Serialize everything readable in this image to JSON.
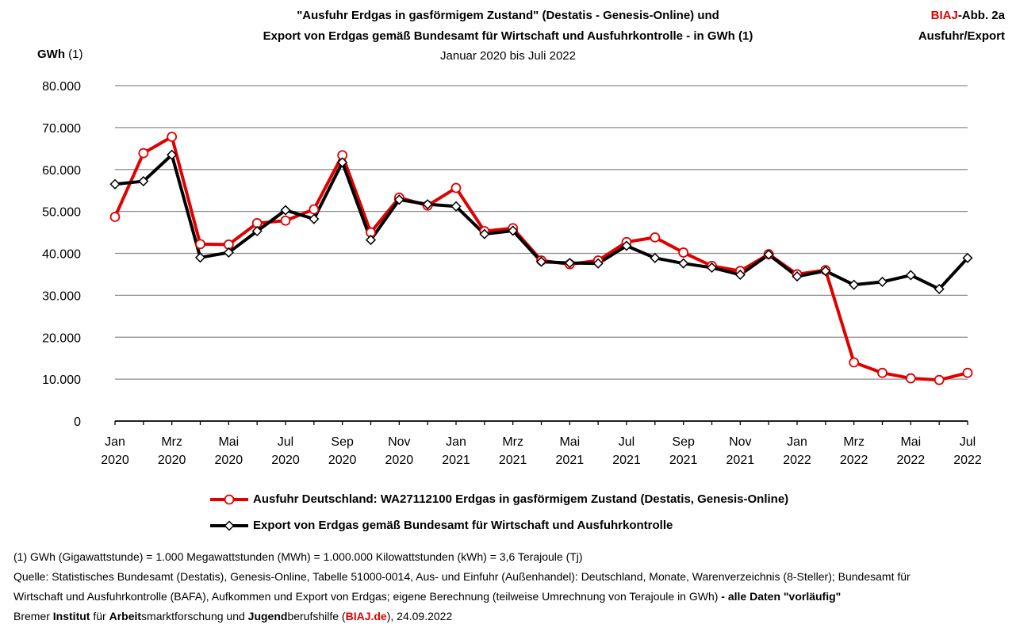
{
  "header": {
    "title_line1": "\"Ausfuhr Erdgas in gasförmigem Zustand\" (Destatis - Genesis-Online) und",
    "title_line2": "Export von Erdgas gemäß Bundesamt für Wirtschaft und Ausfuhrkontrolle  - in GWh (1)",
    "subtitle": "Januar 2020 bis Juli 2022",
    "brand_red": "BIAJ",
    "brand_rest": "-Abb. 2a",
    "brand_line2": "Ausfuhr/Export"
  },
  "axis": {
    "ylabel_bold": "GWh",
    "ylabel_rest": " (1)"
  },
  "chart_data": {
    "type": "line",
    "title": "",
    "xlabel": "",
    "ylabel": "GWh (1)",
    "ylim": [
      0,
      80000
    ],
    "yticks": [
      0,
      10000,
      20000,
      30000,
      40000,
      50000,
      60000,
      70000,
      80000
    ],
    "ytick_labels": [
      "0",
      "10.000",
      "20.000",
      "30.000",
      "40.000",
      "50.000",
      "60.000",
      "70.000",
      "80.000"
    ],
    "grid": true,
    "legend_position": "bottom",
    "x": [
      "Jan 2020",
      "Feb 2020",
      "Mrz 2020",
      "Apr 2020",
      "Mai 2020",
      "Jun 2020",
      "Jul 2020",
      "Aug 2020",
      "Sep 2020",
      "Okt 2020",
      "Nov 2020",
      "Dez 2020",
      "Jan 2021",
      "Feb 2021",
      "Mrz 2021",
      "Apr 2021",
      "Mai 2021",
      "Jun 2021",
      "Jul 2021",
      "Aug 2021",
      "Sep 2021",
      "Okt 2021",
      "Nov 2021",
      "Dez 2021",
      "Jan 2022",
      "Feb 2022",
      "Mrz 2022",
      "Apr 2022",
      "Mai 2022",
      "Jun 2022",
      "Jul 2022"
    ],
    "xtick_labels": [
      {
        "index": 0,
        "month": "Jan",
        "year": "2020"
      },
      {
        "index": 2,
        "month": "Mrz",
        "year": "2020"
      },
      {
        "index": 4,
        "month": "Mai",
        "year": "2020"
      },
      {
        "index": 6,
        "month": "Jul",
        "year": "2020"
      },
      {
        "index": 8,
        "month": "Sep",
        "year": "2020"
      },
      {
        "index": 10,
        "month": "Nov",
        "year": "2020"
      },
      {
        "index": 12,
        "month": "Jan",
        "year": "2021"
      },
      {
        "index": 14,
        "month": "Mrz",
        "year": "2021"
      },
      {
        "index": 16,
        "month": "Mai",
        "year": "2021"
      },
      {
        "index": 18,
        "month": "Jul",
        "year": "2021"
      },
      {
        "index": 20,
        "month": "Sep",
        "year": "2021"
      },
      {
        "index": 22,
        "month": "Nov",
        "year": "2021"
      },
      {
        "index": 24,
        "month": "Jan",
        "year": "2022"
      },
      {
        "index": 26,
        "month": "Mrz",
        "year": "2022"
      },
      {
        "index": 28,
        "month": "Mai",
        "year": "2022"
      },
      {
        "index": 30,
        "month": "Jul",
        "year": "2022"
      }
    ],
    "series": [
      {
        "name": "Ausfuhr Deutschland:  WA27112100 Erdgas in gasförmigem Zustand (Destatis, Genesis-Online)",
        "color": "#e00000",
        "marker": "circle",
        "values": [
          48700,
          63900,
          67800,
          42200,
          42100,
          47200,
          47800,
          50500,
          63400,
          45000,
          53300,
          51400,
          55600,
          45300,
          46000,
          38300,
          37400,
          38300,
          42700,
          43800,
          40200,
          37000,
          35800,
          39800,
          35000,
          36000,
          14000,
          11500,
          10200,
          9800,
          11500
        ]
      },
      {
        "name": "Export von Erdgas gemäß Bundesamt für Wirtschaft und Ausfuhrkontrolle",
        "color": "#000000",
        "marker": "diamond",
        "values": [
          56500,
          57200,
          63500,
          39000,
          40200,
          45300,
          50300,
          48200,
          61700,
          43200,
          52800,
          51700,
          51200,
          44600,
          45400,
          38000,
          37700,
          37600,
          41800,
          38900,
          37600,
          36600,
          34900,
          39700,
          34500,
          35800,
          32500,
          33200,
          34800,
          31500,
          38900
        ]
      }
    ]
  },
  "footnotes": {
    "line1": "(1) GWh (Gigawattstunde) = 1.000 Megawattstunden (MWh)  = 1.000.000 Kilowattstunden (kWh) = 3,6 Terajoule (Tj)",
    "line2": "Quelle: Statistisches Bundesamt (Destatis), Genesis-Online, Tabelle 51000-0014, Aus- und Einfuhr (Außenhandel): Deutschland, Monate, Warenverzeichnis (8-Steller); Bundesamt für",
    "line3_plain": "Wirtschaft und Ausfuhrkontrolle (BAFA), Aufkommen und Export von Erdgas; eigene Berechnung (teilweise Umrechnung von Terajoule in GWh)",
    "line3_bold": " - alle Daten \"vorläufig\"",
    "line4": {
      "p1": "Bremer ",
      "b1": "Institut",
      "p2": " für ",
      "b2": "Arbeit",
      "p3": "smarktforschung und ",
      "b3": "Jugend",
      "p4": "berufshilfe (",
      "link": "BIAJ.de",
      "p5": "), 24.09.2022"
    }
  }
}
